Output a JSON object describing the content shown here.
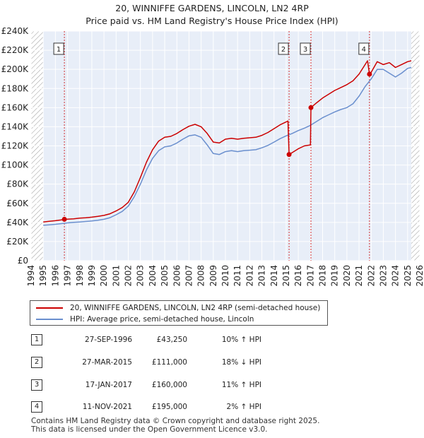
{
  "title_line1": "20, WINNIFFE GARDENS, LINCOLN, LN2 4RP",
  "title_line2": "Price paid vs. HM Land Registry's House Price Index (HPI)",
  "chart_data": {
    "type": "line",
    "y_tick_labels": [
      "£0",
      "£20K",
      "£40K",
      "£60K",
      "£80K",
      "£100K",
      "£120K",
      "£140K",
      "£160K",
      "£180K",
      "£200K",
      "£220K",
      "£240K"
    ],
    "y_ticks": [
      0,
      20000,
      40000,
      60000,
      80000,
      100000,
      120000,
      140000,
      160000,
      180000,
      200000,
      220000,
      240000
    ],
    "ylim": [
      0,
      240000
    ],
    "xlim": [
      1994,
      2026
    ],
    "x_ticks": [
      1994,
      1995,
      1996,
      1997,
      1998,
      1999,
      2000,
      2001,
      2002,
      2003,
      2004,
      2005,
      2006,
      2007,
      2008,
      2009,
      2010,
      2011,
      2012,
      2013,
      2014,
      2015,
      2016,
      2017,
      2018,
      2019,
      2020,
      2021,
      2022,
      2023,
      2024,
      2025,
      2026
    ],
    "data_start": 1995.0,
    "data_end": 2025.3,
    "series": [
      {
        "name": "20, WINNIFFE GARDENS, LINCOLN, LN2 4RP (semi-detached house)",
        "color": "#cc0000",
        "points": [
          [
            1995.0,
            40500
          ],
          [
            1995.5,
            41200
          ],
          [
            1996.0,
            41800
          ],
          [
            1996.5,
            42600
          ],
          [
            1996.74,
            43250
          ],
          [
            1997.0,
            43400
          ],
          [
            1997.5,
            43800
          ],
          [
            1998.0,
            44500
          ],
          [
            1998.5,
            44900
          ],
          [
            1999.0,
            45500
          ],
          [
            1999.5,
            46300
          ],
          [
            2000.0,
            47300
          ],
          [
            2000.5,
            49000
          ],
          [
            2001.0,
            52000
          ],
          [
            2001.5,
            55500
          ],
          [
            2002.0,
            61000
          ],
          [
            2002.5,
            72000
          ],
          [
            2003.0,
            87000
          ],
          [
            2003.5,
            103000
          ],
          [
            2004.0,
            116000
          ],
          [
            2004.5,
            125000
          ],
          [
            2005.0,
            129000
          ],
          [
            2005.5,
            130000
          ],
          [
            2006.0,
            133000
          ],
          [
            2006.5,
            137000
          ],
          [
            2007.0,
            140500
          ],
          [
            2007.5,
            142500
          ],
          [
            2008.0,
            140000
          ],
          [
            2008.5,
            133000
          ],
          [
            2009.0,
            124000
          ],
          [
            2009.5,
            123000
          ],
          [
            2010.0,
            127000
          ],
          [
            2010.5,
            128000
          ],
          [
            2011.0,
            127000
          ],
          [
            2011.5,
            128000
          ],
          [
            2012.0,
            128500
          ],
          [
            2012.5,
            129000
          ],
          [
            2013.0,
            131000
          ],
          [
            2013.5,
            134000
          ],
          [
            2014.0,
            138000
          ],
          [
            2014.5,
            142000
          ],
          [
            2015.0,
            145000
          ],
          [
            2015.15,
            146000
          ],
          [
            2015.24,
            111000
          ],
          [
            2015.5,
            113000
          ],
          [
            2016.0,
            117000
          ],
          [
            2016.5,
            120000
          ],
          [
            2017.0,
            121000
          ],
          [
            2017.04,
            160000
          ],
          [
            2017.5,
            165000
          ],
          [
            2018.0,
            170000
          ],
          [
            2018.5,
            174000
          ],
          [
            2019.0,
            178000
          ],
          [
            2019.5,
            181000
          ],
          [
            2020.0,
            184000
          ],
          [
            2020.5,
            188000
          ],
          [
            2021.0,
            195000
          ],
          [
            2021.5,
            205000
          ],
          [
            2021.7,
            209000
          ],
          [
            2021.86,
            195000
          ],
          [
            2022.0,
            197000
          ],
          [
            2022.5,
            208000
          ],
          [
            2023.0,
            205000
          ],
          [
            2023.5,
            207000
          ],
          [
            2024.0,
            202000
          ],
          [
            2024.5,
            205000
          ],
          [
            2025.0,
            208000
          ],
          [
            2025.3,
            209000
          ]
        ]
      },
      {
        "name": "HPI: Average price, semi-detached house, Lincoln",
        "color": "#6a8fce",
        "points": [
          [
            1995.0,
            37000
          ],
          [
            1995.5,
            37500
          ],
          [
            1996.0,
            38000
          ],
          [
            1996.5,
            38800
          ],
          [
            1997.0,
            39500
          ],
          [
            1997.5,
            40000
          ],
          [
            1998.0,
            40500
          ],
          [
            1998.5,
            41000
          ],
          [
            1999.0,
            41500
          ],
          [
            1999.5,
            42300
          ],
          [
            2000.0,
            43300
          ],
          [
            2000.5,
            45000
          ],
          [
            2001.0,
            48000
          ],
          [
            2001.5,
            51500
          ],
          [
            2002.0,
            57000
          ],
          [
            2002.5,
            67000
          ],
          [
            2003.0,
            80000
          ],
          [
            2003.5,
            95000
          ],
          [
            2004.0,
            107000
          ],
          [
            2004.5,
            115000
          ],
          [
            2005.0,
            119000
          ],
          [
            2005.5,
            120000
          ],
          [
            2006.0,
            123000
          ],
          [
            2006.5,
            127000
          ],
          [
            2007.0,
            130500
          ],
          [
            2007.5,
            131500
          ],
          [
            2008.0,
            129000
          ],
          [
            2008.5,
            121000
          ],
          [
            2009.0,
            112000
          ],
          [
            2009.5,
            111000
          ],
          [
            2010.0,
            114000
          ],
          [
            2010.5,
            115000
          ],
          [
            2011.0,
            114000
          ],
          [
            2011.5,
            115000
          ],
          [
            2012.0,
            115500
          ],
          [
            2012.5,
            116000
          ],
          [
            2013.0,
            118000
          ],
          [
            2013.5,
            120500
          ],
          [
            2014.0,
            124000
          ],
          [
            2014.5,
            127500
          ],
          [
            2015.0,
            130500
          ],
          [
            2015.5,
            133000
          ],
          [
            2016.0,
            136000
          ],
          [
            2016.5,
            138500
          ],
          [
            2017.0,
            141500
          ],
          [
            2017.5,
            145500
          ],
          [
            2018.0,
            149500
          ],
          [
            2018.5,
            152500
          ],
          [
            2019.0,
            155500
          ],
          [
            2019.5,
            158000
          ],
          [
            2020.0,
            160000
          ],
          [
            2020.5,
            164000
          ],
          [
            2021.0,
            172000
          ],
          [
            2021.5,
            182000
          ],
          [
            2022.0,
            190000
          ],
          [
            2022.5,
            200000
          ],
          [
            2023.0,
            200000
          ],
          [
            2023.5,
            196000
          ],
          [
            2024.0,
            192000
          ],
          [
            2024.5,
            196000
          ],
          [
            2025.0,
            201000
          ],
          [
            2025.3,
            202000
          ]
        ]
      }
    ],
    "markers": [
      {
        "label": "1",
        "x": 1996.74,
        "y": 43250
      },
      {
        "label": "2",
        "x": 2015.24,
        "y": 111000
      },
      {
        "label": "3",
        "x": 2017.04,
        "y": 160000
      },
      {
        "label": "4",
        "x": 2021.86,
        "y": 195000
      }
    ],
    "colors": {
      "background_shade": "#e8eef8",
      "hatch": "#888888",
      "grid": "#ffffff",
      "marker_line": "#cc0000"
    }
  },
  "legend": {
    "red_label": "20, WINNIFFE GARDENS, LINCOLN, LN2 4RP (semi-detached house)",
    "blue_label": "HPI: Average price, semi-detached house, Lincoln"
  },
  "transactions": [
    {
      "num": "1",
      "date": "27-SEP-1996",
      "price": "£43,250",
      "hpi": "10% ↑ HPI"
    },
    {
      "num": "2",
      "date": "27-MAR-2015",
      "price": "£111,000",
      "hpi": "18% ↓ HPI"
    },
    {
      "num": "3",
      "date": "17-JAN-2017",
      "price": "£160,000",
      "hpi": "11% ↑ HPI"
    },
    {
      "num": "4",
      "date": "11-NOV-2021",
      "price": "£195,000",
      "hpi": "2% ↑ HPI"
    }
  ],
  "footer": {
    "line1": "Contains HM Land Registry data © Crown copyright and database right 2025.",
    "line2": "This data is licensed under the Open Government Licence v3.0."
  }
}
